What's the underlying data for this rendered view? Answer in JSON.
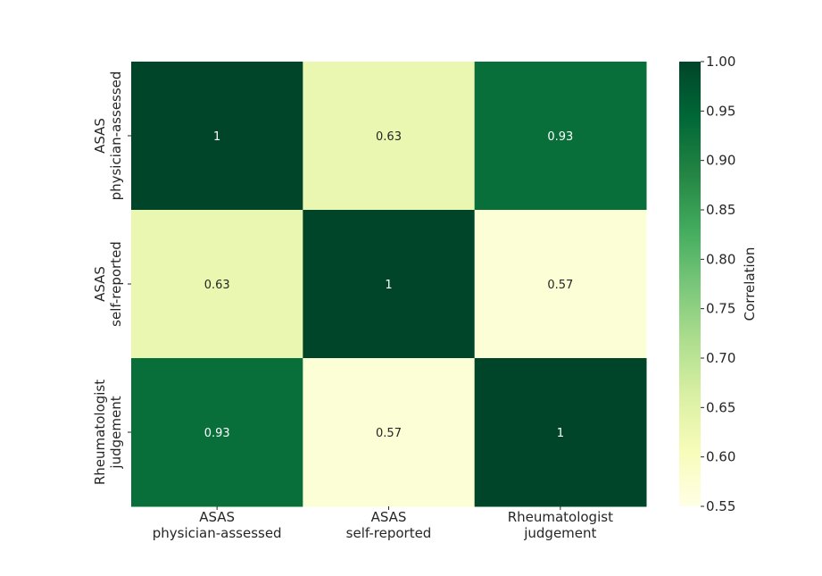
{
  "chart_data": {
    "type": "heatmap",
    "title": "",
    "row_labels": [
      [
        "ASAS",
        "physician-assessed"
      ],
      [
        "ASAS",
        "self-reported"
      ],
      [
        "Rheumatologist",
        "judgement"
      ]
    ],
    "col_labels": [
      [
        "ASAS",
        "physician-assessed"
      ],
      [
        "ASAS",
        "self-reported"
      ],
      [
        "Rheumatologist",
        "judgement"
      ]
    ],
    "values": [
      [
        1,
        0.63,
        0.93
      ],
      [
        0.63,
        1,
        0.57
      ],
      [
        0.93,
        0.57,
        1
      ]
    ],
    "annotations": [
      [
        "1",
        "0.63",
        "0.93"
      ],
      [
        "0.63",
        "1",
        "0.57"
      ],
      [
        "0.93",
        "0.57",
        "1"
      ]
    ],
    "colormap": "YlGn",
    "colorbar": {
      "label": "Correlation",
      "min": 0.55,
      "max": 1.0,
      "ticks": [
        "0.55",
        "0.60",
        "0.65",
        "0.70",
        "0.75",
        "0.80",
        "0.85",
        "0.90",
        "0.95",
        "1.00"
      ]
    }
  }
}
